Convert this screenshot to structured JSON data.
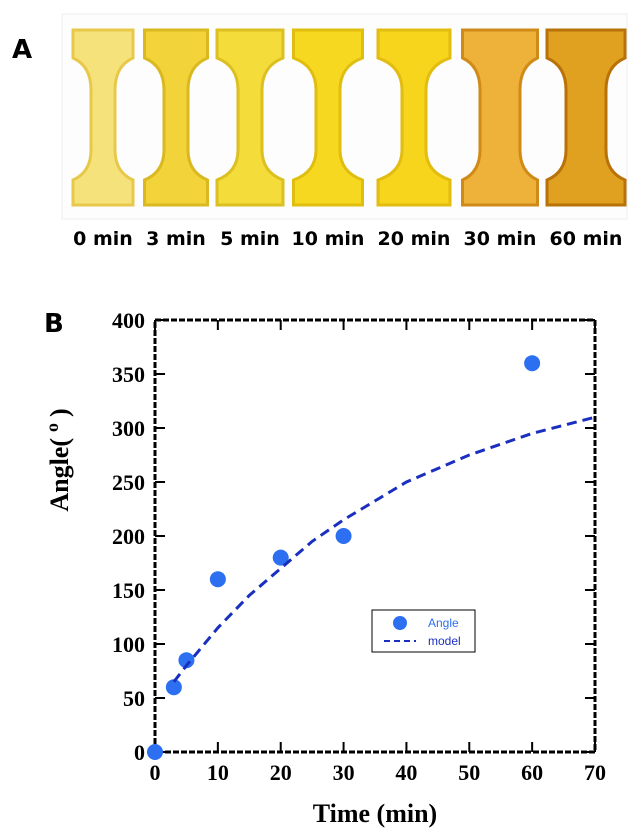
{
  "panels": {
    "a": {
      "label": "A",
      "captions": [
        "0 min",
        "3 min",
        "5 min",
        "10 min",
        "20 min",
        "30 min",
        "60 min"
      ]
    },
    "b": {
      "label": "B"
    }
  },
  "chart_data": {
    "type": "scatter",
    "xlabel": "Time (min)",
    "ylabel": [
      "Angle(",
      "o",
      ")"
    ],
    "xlim": [
      0,
      70
    ],
    "xticks": [
      0,
      10,
      20,
      30,
      40,
      50,
      60,
      70
    ],
    "ylim": [
      0,
      400
    ],
    "yticks": [
      0,
      50,
      100,
      150,
      200,
      250,
      300,
      350,
      400
    ],
    "series": [
      {
        "name": "Angle",
        "color": "#2c6ff0",
        "kind": "points",
        "x": [
          0,
          3,
          5,
          10,
          20,
          30,
          60
        ],
        "values": [
          0,
          60,
          85,
          160,
          180,
          200,
          360
        ]
      },
      {
        "name": "model",
        "color": "#1a2fbf",
        "kind": "dashed-line",
        "x": [
          3,
          5,
          10,
          15,
          20,
          25,
          30,
          40,
          50,
          60,
          70
        ],
        "values": [
          65,
          80,
          115,
          145,
          170,
          195,
          215,
          250,
          275,
          295,
          310
        ]
      }
    ]
  }
}
